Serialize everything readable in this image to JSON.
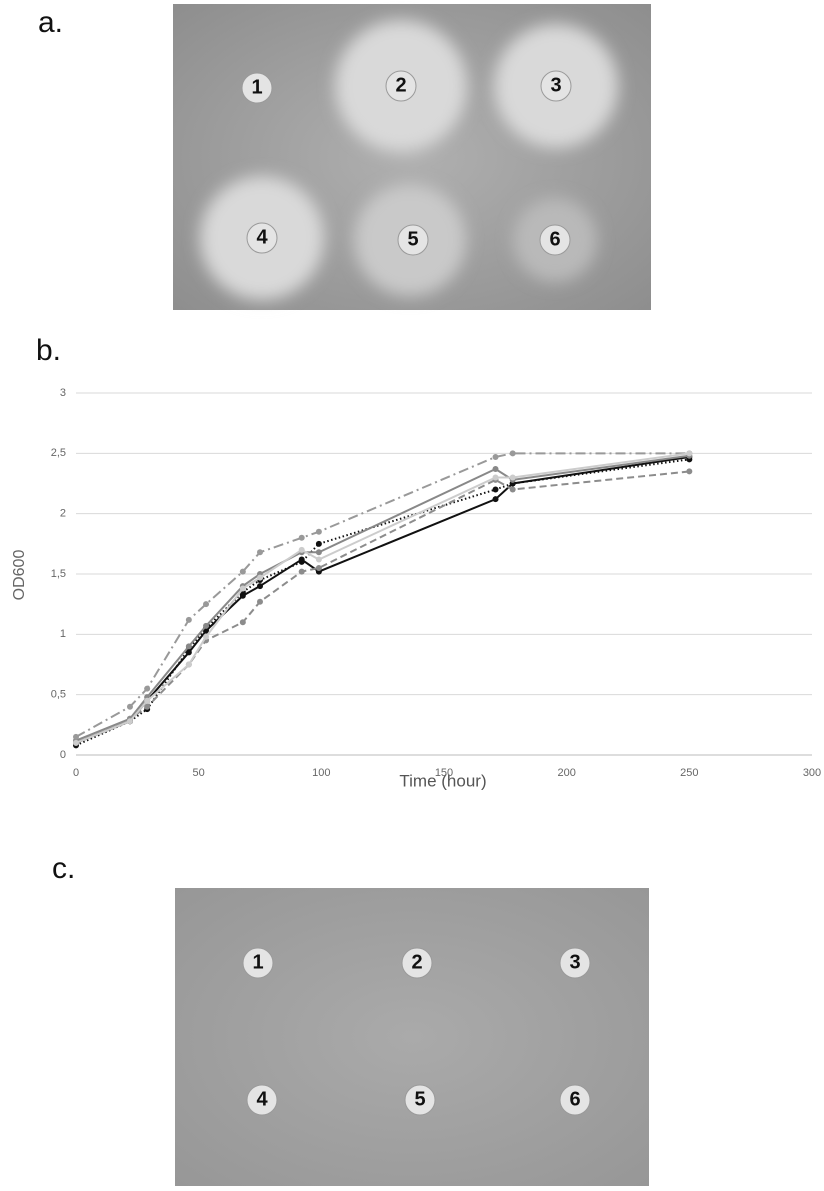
{
  "panel_a": {
    "label": "a.",
    "wells": [
      "1",
      "2",
      "3",
      "4",
      "5",
      "6"
    ]
  },
  "panel_b": {
    "label": "b."
  },
  "chart_data": {
    "type": "line",
    "x_label": "Time (hour)",
    "y_label": "OD600",
    "x": [
      0,
      22,
      29,
      46,
      53,
      68,
      75,
      92,
      99,
      171,
      178,
      250
    ],
    "series": [
      {
        "color": "#111111",
        "dash": "solid",
        "values": [
          0.1,
          0.28,
          0.45,
          0.85,
          1.03,
          1.32,
          1.4,
          1.62,
          1.52,
          2.12,
          2.25,
          2.47
        ]
      },
      {
        "color": "#111111",
        "dash": "dotted",
        "values": [
          0.08,
          0.28,
          0.38,
          0.88,
          1.05,
          1.35,
          1.45,
          1.6,
          1.75,
          2.2,
          2.25,
          2.45
        ]
      },
      {
        "color": "#888888",
        "dash": "solid",
        "values": [
          0.12,
          0.3,
          0.48,
          0.9,
          1.07,
          1.4,
          1.5,
          1.68,
          1.68,
          2.37,
          2.28,
          2.48
        ]
      },
      {
        "color": "#999999",
        "dash": "dashdot",
        "values": [
          0.15,
          0.4,
          0.55,
          1.12,
          1.25,
          1.52,
          1.68,
          1.8,
          1.85,
          2.47,
          2.5,
          2.5
        ]
      },
      {
        "color": "#8c8c8c",
        "dash": "dashed",
        "values": [
          0.1,
          0.3,
          0.4,
          0.75,
          0.95,
          1.1,
          1.27,
          1.52,
          1.55,
          2.28,
          2.2,
          2.35
        ]
      },
      {
        "color": "#cccccc",
        "dash": "solid",
        "values": [
          0.1,
          0.28,
          0.45,
          0.75,
          0.98,
          1.38,
          1.47,
          1.7,
          1.62,
          2.3,
          2.3,
          2.5
        ]
      }
    ],
    "xlim": [
      0,
      300
    ],
    "xticks": [
      0,
      50,
      100,
      150,
      200,
      250,
      300
    ],
    "ylim": [
      0,
      3
    ],
    "yticks": [
      0,
      {
        "value": 0.5,
        "label": "0,5"
      },
      1,
      {
        "value": 1.5,
        "label": "1,5"
      },
      2,
      {
        "value": 2.5,
        "label": "2,5"
      },
      3
    ],
    "grid": true
  },
  "panel_c": {
    "label": "c.",
    "wells": [
      "1",
      "2",
      "3",
      "4",
      "5",
      "6"
    ]
  }
}
